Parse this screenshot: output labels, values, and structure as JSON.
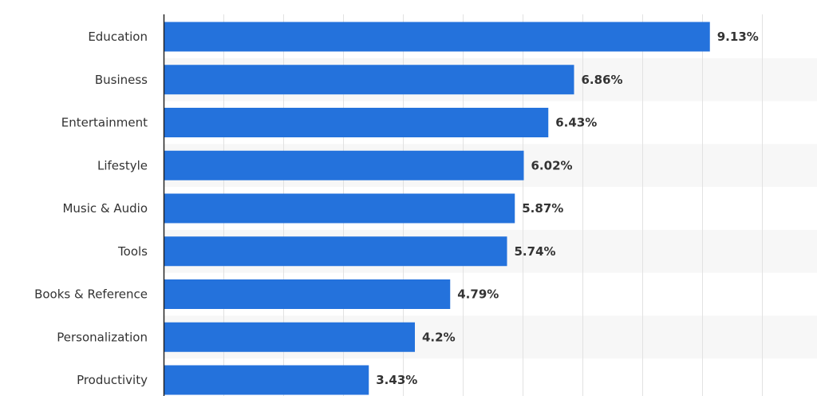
{
  "chart_data": {
    "type": "bar",
    "orientation": "horizontal",
    "categories": [
      "Education",
      "Business",
      "Entertainment",
      "Lifestyle",
      "Music & Audio",
      "Tools",
      "Books & Reference",
      "Personalization",
      "Productivity"
    ],
    "values": [
      9.13,
      6.86,
      6.43,
      6.02,
      5.87,
      5.74,
      4.79,
      4.2,
      3.43
    ],
    "value_labels": [
      "9.13%",
      "6.86%",
      "6.43%",
      "6.02%",
      "5.87%",
      "5.74%",
      "4.79%",
      "4.2%",
      "3.43%"
    ],
    "title": "",
    "xlabel": "",
    "ylabel": "",
    "xlim": [
      0,
      10.5
    ],
    "grid": true,
    "bar_color": "#2472dc",
    "stripe_color": "#f7f7f7"
  }
}
